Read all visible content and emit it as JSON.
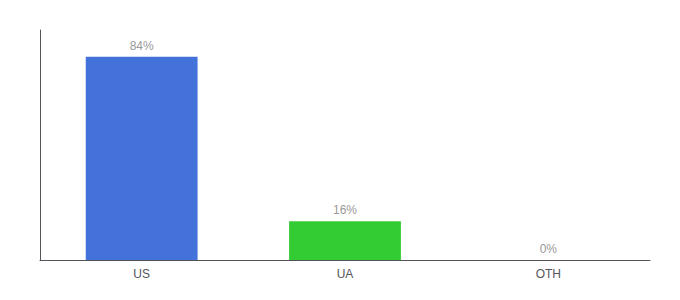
{
  "chart_data": {
    "type": "bar",
    "categories": [
      "US",
      "UA",
      "OTH"
    ],
    "values": [
      84,
      16,
      0
    ],
    "value_labels": [
      "84%",
      "16%",
      "0%"
    ],
    "colors": [
      "#4472db",
      "#33cc33",
      "#4472db"
    ],
    "ylim": [
      0,
      95
    ],
    "data_labels": true,
    "tick_labels": "x",
    "grid": false
  }
}
